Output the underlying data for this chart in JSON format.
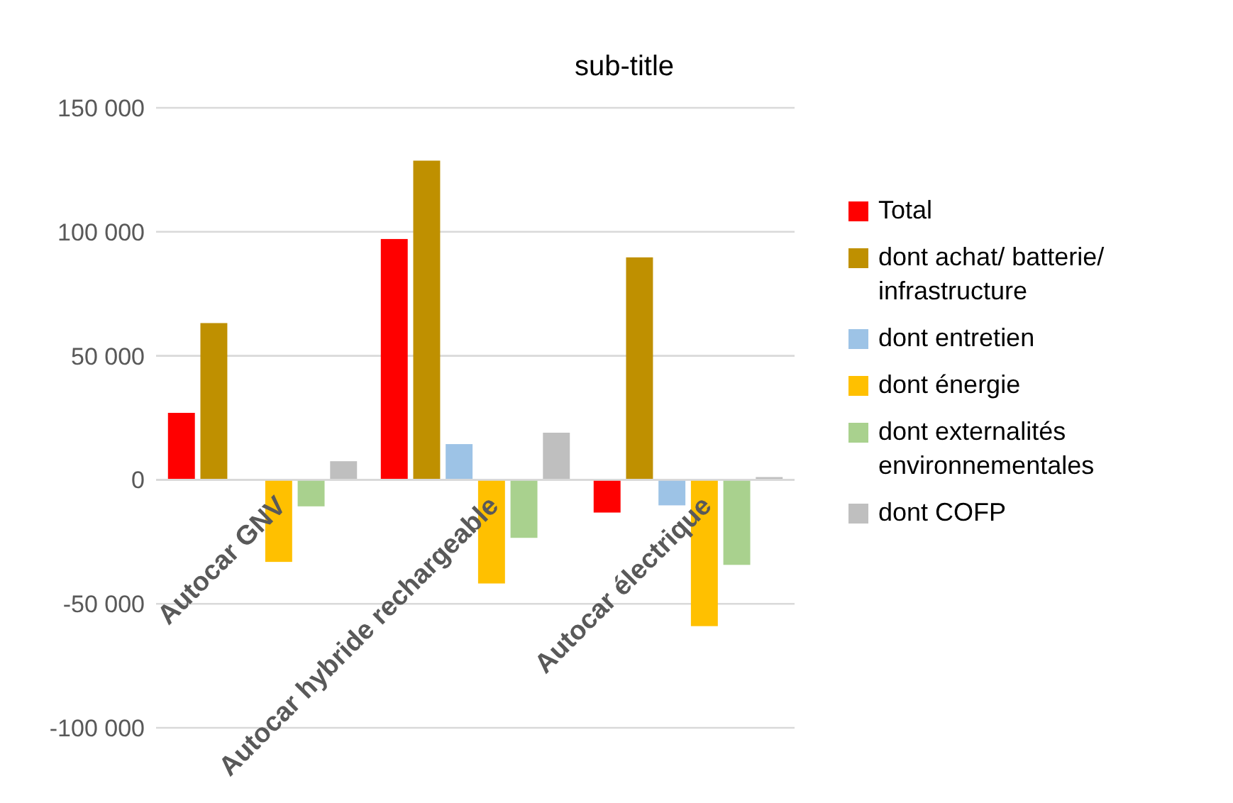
{
  "chart_data": {
    "type": "bar",
    "title": "sub-title",
    "categories": [
      "Autocar GNV",
      "Autocar hybride rechargeable",
      "Autocar électrique"
    ],
    "series": [
      {
        "name": "Total",
        "color": "#ff0000",
        "values": [
          27000,
          97100,
          -13200
        ]
      },
      {
        "name": "dont achat/ batterie/ infrastructure",
        "color": "#bf9000",
        "values": [
          63200,
          128700,
          89700
        ]
      },
      {
        "name": "dont entretien",
        "color": "#9dc3e6",
        "values": [
          0,
          14400,
          -10300
        ]
      },
      {
        "name": "dont énergie",
        "color": "#ffc000",
        "values": [
          -33100,
          -41800,
          -59000
        ]
      },
      {
        "name": "dont externalités environnementales",
        "color": "#a9d18e",
        "values": [
          -10700,
          -23400,
          -34300
        ]
      },
      {
        "name": "dont COFP",
        "color": "#bfbfbf",
        "values": [
          7500,
          19000,
          1100
        ]
      }
    ],
    "ylim": [
      -100000,
      150000
    ],
    "yticks": [
      {
        "value": -100000,
        "label": "-100 000"
      },
      {
        "value": -50000,
        "label": "-50 000"
      },
      {
        "value": 0,
        "label": "0"
      },
      {
        "value": 50000,
        "label": "50 000"
      },
      {
        "value": 100000,
        "label": "100 000"
      },
      {
        "value": 150000,
        "label": "150 000"
      }
    ],
    "grid": "y",
    "legend": "right"
  }
}
